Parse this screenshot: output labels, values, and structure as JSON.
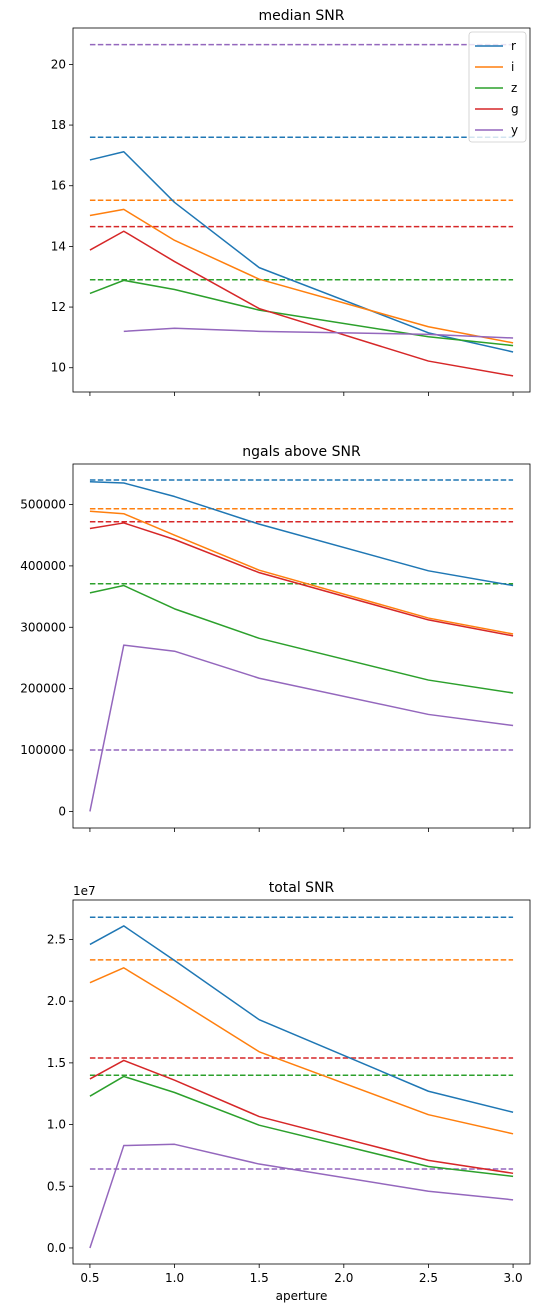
{
  "chart_data": [
    {
      "type": "line",
      "title": "median SNR",
      "xlabel": "",
      "ylabel": "",
      "xlim": [
        0.4,
        3.1
      ],
      "ylim": [
        9.2,
        21.2
      ],
      "xticks": [
        0.5,
        1.0,
        1.5,
        2.0,
        2.5,
        3.0
      ],
      "xtick_labels_visible": false,
      "yticks": [
        10,
        12,
        14,
        16,
        18,
        20
      ],
      "ytick_labels": [
        "10",
        "12",
        "14",
        "16",
        "18",
        "20"
      ],
      "offset_text": "",
      "legend": {
        "placement": "top-right"
      },
      "grid": false,
      "series": [
        {
          "name": "r",
          "color": "#1f77b4",
          "x": [
            0.5,
            0.7,
            1.0,
            1.5,
            2.5,
            3.0
          ],
          "values": [
            16.85,
            17.12,
            15.45,
            13.3,
            11.15,
            10.52
          ]
        },
        {
          "name": "i",
          "color": "#ff7f0e",
          "x": [
            0.5,
            0.7,
            1.0,
            1.5,
            2.5,
            3.0
          ],
          "values": [
            15.02,
            15.22,
            14.2,
            12.92,
            11.35,
            10.82
          ]
        },
        {
          "name": "z",
          "color": "#2ca02c",
          "x": [
            0.5,
            0.7,
            1.0,
            1.5,
            2.5,
            3.0
          ],
          "values": [
            12.45,
            12.88,
            12.58,
            11.9,
            11.02,
            10.73
          ]
        },
        {
          "name": "g",
          "color": "#d62728",
          "x": [
            0.5,
            0.7,
            1.0,
            1.5,
            2.5,
            3.0
          ],
          "values": [
            13.88,
            14.5,
            13.5,
            11.95,
            10.22,
            9.73
          ]
        },
        {
          "name": "y",
          "color": "#9467bd",
          "x": [
            0.7,
            1.0,
            1.5,
            2.5,
            3.0
          ],
          "values": [
            11.2,
            11.3,
            11.2,
            11.1,
            10.98
          ]
        }
      ],
      "reference_lines": [
        {
          "series": "r",
          "color": "#1f77b4",
          "value": 17.6
        },
        {
          "series": "i",
          "color": "#ff7f0e",
          "value": 15.52
        },
        {
          "series": "z",
          "color": "#2ca02c",
          "value": 12.9
        },
        {
          "series": "g",
          "color": "#d62728",
          "value": 14.65
        },
        {
          "series": "y",
          "color": "#9467bd",
          "value": 20.65
        }
      ]
    },
    {
      "type": "line",
      "title": "ngals above SNR",
      "xlabel": "",
      "ylabel": "",
      "xlim": [
        0.4,
        3.1
      ],
      "ylim": [
        -27000,
        566000
      ],
      "xticks": [
        0.5,
        1.0,
        1.5,
        2.0,
        2.5,
        3.0
      ],
      "xtick_labels_visible": false,
      "yticks": [
        0,
        100000,
        200000,
        300000,
        400000,
        500000
      ],
      "ytick_labels": [
        "0",
        "100000",
        "200000",
        "300000",
        "400000",
        "500000"
      ],
      "offset_text": "",
      "grid": false,
      "series": [
        {
          "name": "r",
          "color": "#1f77b4",
          "x": [
            0.5,
            0.7,
            1.0,
            1.5,
            2.5,
            3.0
          ],
          "values": [
            537000,
            535000,
            513000,
            468000,
            392000,
            368000
          ]
        },
        {
          "name": "i",
          "color": "#ff7f0e",
          "x": [
            0.5,
            0.7,
            1.0,
            1.5,
            2.5,
            3.0
          ],
          "values": [
            489000,
            485000,
            450000,
            393000,
            315000,
            289000
          ]
        },
        {
          "name": "z",
          "color": "#2ca02c",
          "x": [
            0.5,
            0.7,
            1.0,
            1.5,
            2.5,
            3.0
          ],
          "values": [
            356000,
            368000,
            330000,
            282000,
            214000,
            193000
          ]
        },
        {
          "name": "g",
          "color": "#d62728",
          "x": [
            0.5,
            0.7,
            1.0,
            1.5,
            2.5,
            3.0
          ],
          "values": [
            461000,
            470000,
            443000,
            389000,
            312000,
            286000
          ]
        },
        {
          "name": "y",
          "color": "#9467bd",
          "x": [
            0.5,
            0.7,
            1.0,
            1.5,
            2.5,
            3.0
          ],
          "values": [
            0,
            271000,
            261000,
            217000,
            158000,
            140000
          ]
        }
      ],
      "reference_lines": [
        {
          "series": "r",
          "color": "#1f77b4",
          "value": 540000
        },
        {
          "series": "i",
          "color": "#ff7f0e",
          "value": 493000
        },
        {
          "series": "z",
          "color": "#2ca02c",
          "value": 371000
        },
        {
          "series": "g",
          "color": "#d62728",
          "value": 472000
        },
        {
          "series": "y",
          "color": "#9467bd",
          "value": 100000
        }
      ]
    },
    {
      "type": "line",
      "title": "total SNR",
      "xlabel": "aperture",
      "ylabel": "",
      "xlim": [
        0.4,
        3.1
      ],
      "ylim": [
        -0.13,
        2.82
      ],
      "xticks": [
        0.5,
        1.0,
        1.5,
        2.0,
        2.5,
        3.0
      ],
      "xtick_labels_visible": true,
      "xtick_labels": [
        "0.5",
        "1.0",
        "1.5",
        "2.0",
        "2.5",
        "3.0"
      ],
      "yticks": [
        0.0,
        0.5,
        1.0,
        1.5,
        2.0,
        2.5
      ],
      "ytick_labels": [
        "0.0",
        "0.5",
        "1.0",
        "1.5",
        "2.0",
        "2.5"
      ],
      "offset_text": "1e7",
      "grid": false,
      "series": [
        {
          "name": "r",
          "color": "#1f77b4",
          "x": [
            0.5,
            0.7,
            1.0,
            1.5,
            2.5,
            3.0
          ],
          "values": [
            2.46,
            2.61,
            2.33,
            1.85,
            1.27,
            1.1
          ]
        },
        {
          "name": "i",
          "color": "#ff7f0e",
          "x": [
            0.5,
            0.7,
            1.0,
            1.5,
            2.5,
            3.0
          ],
          "values": [
            2.15,
            2.27,
            2.02,
            1.59,
            1.08,
            0.925
          ]
        },
        {
          "name": "z",
          "color": "#2ca02c",
          "x": [
            0.5,
            0.7,
            1.0,
            1.5,
            2.5,
            3.0
          ],
          "values": [
            1.23,
            1.39,
            1.26,
            0.995,
            0.66,
            0.58
          ]
        },
        {
          "name": "g",
          "color": "#d62728",
          "x": [
            0.5,
            0.7,
            1.0,
            1.5,
            2.5,
            3.0
          ],
          "values": [
            1.37,
            1.52,
            1.36,
            1.065,
            0.71,
            0.605
          ]
        },
        {
          "name": "y",
          "color": "#9467bd",
          "x": [
            0.5,
            0.7,
            1.0,
            1.5,
            2.5,
            3.0
          ],
          "values": [
            0.0,
            0.83,
            0.84,
            0.68,
            0.46,
            0.39
          ]
        }
      ],
      "reference_lines": [
        {
          "series": "r",
          "color": "#1f77b4",
          "value": 2.68
        },
        {
          "series": "i",
          "color": "#ff7f0e",
          "value": 2.335
        },
        {
          "series": "z",
          "color": "#2ca02c",
          "value": 1.4
        },
        {
          "series": "g",
          "color": "#d62728",
          "value": 1.54
        },
        {
          "series": "y",
          "color": "#9467bd",
          "value": 0.64
        }
      ]
    }
  ]
}
